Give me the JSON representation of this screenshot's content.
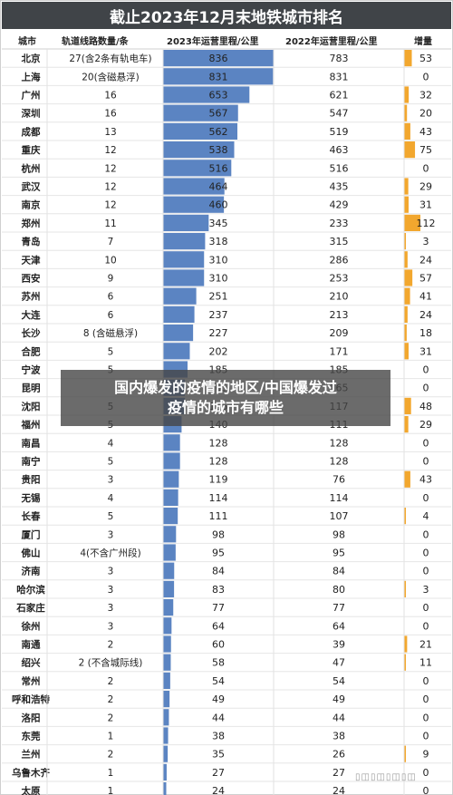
{
  "header": {
    "title": "截止2023年12月末地铁城市排名",
    "col_city": "城市",
    "col_lines": "轨道线路数量/条",
    "col_2023": "2023年运营里程/公里",
    "col_2022": "2022年运营里程/公里",
    "col_increase": "增量"
  },
  "overlay": {
    "line1": "国内爆发的疫情的地区/中国爆发过",
    "line2": "疫情的城市有哪些"
  },
  "watermark": "▯◫▯◫▯◫▯◫",
  "colors": {
    "bar_2023": "#5b84c2",
    "bar_increase": "#f2a72e",
    "title_bg": "#404448",
    "row_line": "#e6e6e6"
  },
  "chart_data": {
    "type": "table",
    "title": "截止2023年12月末地铁城市排名",
    "columns": [
      "城市",
      "轨道线路数量/条",
      "2023年运营里程/公里",
      "2022年运营里程/公里",
      "增量"
    ],
    "xlim_2023": [
      0,
      836
    ],
    "xlim_increase": [
      0,
      112
    ],
    "rows": [
      {
        "city": "北京",
        "lines": "27(含2条有轨电车)",
        "km2023": 836,
        "km2022": 783,
        "increase": 53
      },
      {
        "city": "上海",
        "lines": "20(含磁悬浮)",
        "km2023": 831,
        "km2022": 831,
        "increase": 0
      },
      {
        "city": "广州",
        "lines": "16",
        "km2023": 653,
        "km2022": 621,
        "increase": 32
      },
      {
        "city": "深圳",
        "lines": "16",
        "km2023": 567,
        "km2022": 547,
        "increase": 20
      },
      {
        "city": "成都",
        "lines": "13",
        "km2023": 562,
        "km2022": 519,
        "increase": 43
      },
      {
        "city": "重庆",
        "lines": "12",
        "km2023": 538,
        "km2022": 463,
        "increase": 75
      },
      {
        "city": "杭州",
        "lines": "12",
        "km2023": 516,
        "km2022": 516,
        "increase": 0
      },
      {
        "city": "武汉",
        "lines": "12",
        "km2023": 464,
        "km2022": 435,
        "increase": 29
      },
      {
        "city": "南京",
        "lines": "12",
        "km2023": 460,
        "km2022": 429,
        "increase": 31
      },
      {
        "city": "郑州",
        "lines": "11",
        "km2023": 345,
        "km2022": 233,
        "increase": 112
      },
      {
        "city": "青岛",
        "lines": "7",
        "km2023": 318,
        "km2022": 315,
        "increase": 3
      },
      {
        "city": "天津",
        "lines": "10",
        "km2023": 310,
        "km2022": 286,
        "increase": 24
      },
      {
        "city": "西安",
        "lines": "9",
        "km2023": 310,
        "km2022": 253,
        "increase": 57
      },
      {
        "city": "苏州",
        "lines": "6",
        "km2023": 251,
        "km2022": 210,
        "increase": 41
      },
      {
        "city": "大连",
        "lines": "6",
        "km2023": 237,
        "km2022": 213,
        "increase": 24
      },
      {
        "city": "长沙",
        "lines": "8 (含磁悬浮)",
        "km2023": 227,
        "km2022": 209,
        "increase": 18
      },
      {
        "city": "合肥",
        "lines": "5",
        "km2023": 202,
        "km2022": 171,
        "increase": 31
      },
      {
        "city": "宁波",
        "lines": "5",
        "km2023": 185,
        "km2022": 185,
        "increase": 0
      },
      {
        "city": "昆明",
        "lines": "",
        "km2023": 165,
        "km2022": 165,
        "increase": 0
      },
      {
        "city": "沈阳",
        "lines": "5",
        "km2023": 165,
        "km2022": 117,
        "increase": 48
      },
      {
        "city": "福州",
        "lines": "5",
        "km2023": 140,
        "km2022": 111,
        "increase": 29
      },
      {
        "city": "南昌",
        "lines": "4",
        "km2023": 128,
        "km2022": 128,
        "increase": 0
      },
      {
        "city": "南宁",
        "lines": "5",
        "km2023": 128,
        "km2022": 128,
        "increase": 0
      },
      {
        "city": "贵阳",
        "lines": "3",
        "km2023": 119,
        "km2022": 76,
        "increase": 43
      },
      {
        "city": "无锡",
        "lines": "4",
        "km2023": 114,
        "km2022": 114,
        "increase": 0
      },
      {
        "city": "长春",
        "lines": "5",
        "km2023": 111,
        "km2022": 107,
        "increase": 4
      },
      {
        "city": "厦门",
        "lines": "3",
        "km2023": 98,
        "km2022": 98,
        "increase": 0
      },
      {
        "city": "佛山",
        "lines": "4(不含广州段)",
        "km2023": 95,
        "km2022": 95,
        "increase": 0
      },
      {
        "city": "济南",
        "lines": "3",
        "km2023": 84,
        "km2022": 84,
        "increase": 0
      },
      {
        "city": "哈尔滨",
        "lines": "3",
        "km2023": 83,
        "km2022": 80,
        "increase": 3
      },
      {
        "city": "石家庄",
        "lines": "3",
        "km2023": 77,
        "km2022": 77,
        "increase": 0
      },
      {
        "city": "徐州",
        "lines": "3",
        "km2023": 64,
        "km2022": 64,
        "increase": 0
      },
      {
        "city": "南通",
        "lines": "2",
        "km2023": 60,
        "km2022": 39,
        "increase": 21
      },
      {
        "city": "绍兴",
        "lines": "2 (不含城际线)",
        "km2023": 58,
        "km2022": 47,
        "increase": 11
      },
      {
        "city": "常州",
        "lines": "2",
        "km2023": 54,
        "km2022": 54,
        "increase": 0
      },
      {
        "city": "呼和浩特",
        "lines": "2",
        "km2023": 49,
        "km2022": 49,
        "increase": 0
      },
      {
        "city": "洛阳",
        "lines": "2",
        "km2023": 44,
        "km2022": 44,
        "increase": 0
      },
      {
        "city": "东莞",
        "lines": "1",
        "km2023": 38,
        "km2022": 38,
        "increase": 0
      },
      {
        "city": "兰州",
        "lines": "2",
        "km2023": 35,
        "km2022": 26,
        "increase": 9
      },
      {
        "city": "乌鲁木齐",
        "lines": "1",
        "km2023": 27,
        "km2022": 27,
        "increase": 0
      },
      {
        "city": "太原",
        "lines": "1",
        "km2023": 24,
        "km2022": 24,
        "increase": 0
      }
    ]
  }
}
